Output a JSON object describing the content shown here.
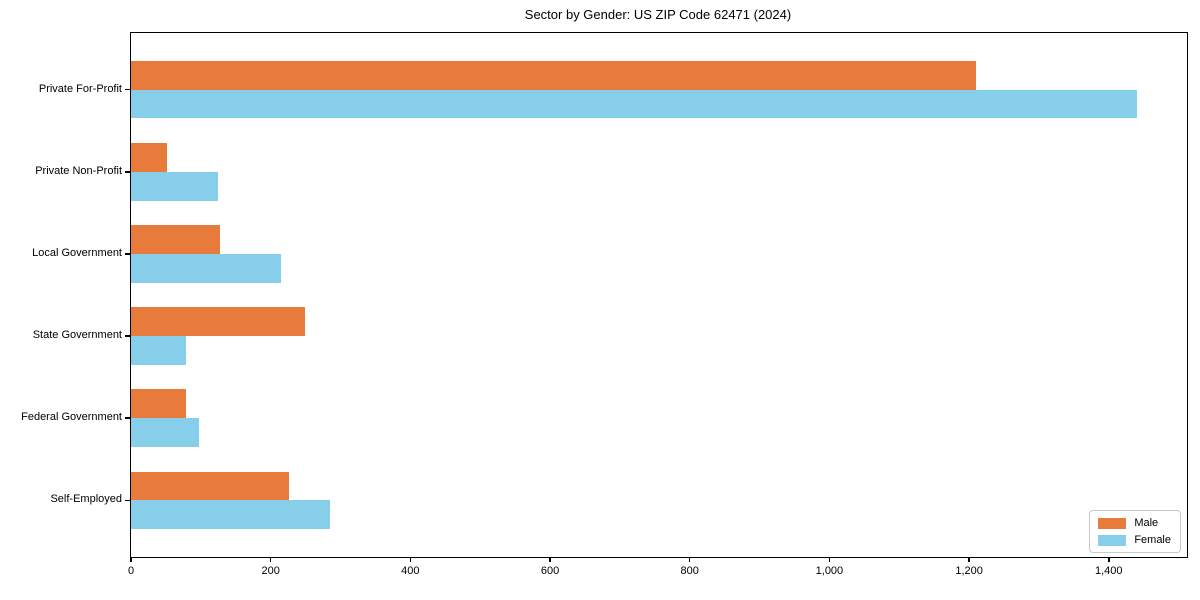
{
  "chart_data": {
    "type": "bar",
    "orientation": "horizontal",
    "title": "Sector by Gender: US ZIP Code 62471 (2024)",
    "categories": [
      "Private For-Profit",
      "Private Non-Profit",
      "Local Government",
      "State Government",
      "Federal Government",
      "Self-Employed"
    ],
    "series": [
      {
        "name": "Male",
        "color": "#e87b3c",
        "values": [
          1210,
          52,
          127,
          249,
          79,
          226
        ]
      },
      {
        "name": "Female",
        "color": "#87ceeb",
        "values": [
          1440,
          125,
          215,
          79,
          97,
          285
        ]
      }
    ],
    "xlabel": "",
    "ylabel": "",
    "xlim": [
      0,
      1512
    ],
    "x_ticks": [
      {
        "value": 0,
        "label": "0"
      },
      {
        "value": 200,
        "label": "200"
      },
      {
        "value": 400,
        "label": "400"
      },
      {
        "value": 600,
        "label": "600"
      },
      {
        "value": 800,
        "label": "800"
      },
      {
        "value": 1000,
        "label": "1,000"
      },
      {
        "value": 1200,
        "label": "1,200"
      },
      {
        "value": 1400,
        "label": "1,400"
      }
    ],
    "grid": false,
    "legend_position": "lower right",
    "spine_color": "#000000",
    "background_color": "#ffffff"
  }
}
